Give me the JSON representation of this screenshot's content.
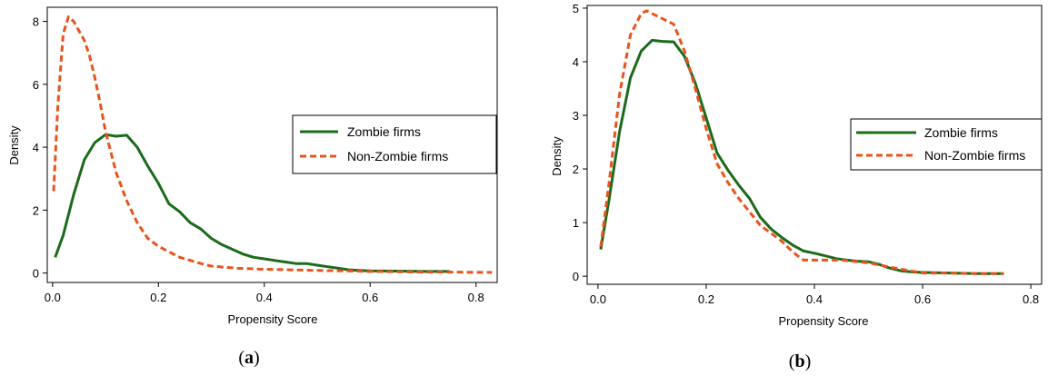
{
  "series_style": {
    "zombie_color": "#1b6b1b",
    "nonzombie_color": "#e8541c"
  },
  "chart_data": [
    {
      "type": "line",
      "caption": {
        "open": "(",
        "letter": "a",
        "close": ")"
      },
      "xlabel": "Propensity Score",
      "ylabel": "Density",
      "xlim": [
        -0.01,
        0.84
      ],
      "ylim": [
        -0.3,
        8.45
      ],
      "xticks": [
        0,
        0.2,
        0.4,
        0.6,
        0.8
      ],
      "xtick_labels": [
        "0.0",
        "0.2",
        "0.4",
        "0.6",
        "0.8"
      ],
      "yticks": [
        0,
        2,
        4,
        6,
        8
      ],
      "ytick_labels": [
        "0",
        "2",
        "4",
        "6",
        "8"
      ],
      "grid": false,
      "legend_position": "right",
      "series": [
        {
          "name": "Zombie firms",
          "line_style": "solid",
          "x": [
            0.005,
            0.02,
            0.04,
            0.06,
            0.08,
            0.1,
            0.12,
            0.14,
            0.16,
            0.18,
            0.2,
            0.22,
            0.24,
            0.26,
            0.28,
            0.3,
            0.32,
            0.34,
            0.36,
            0.38,
            0.4,
            0.42,
            0.44,
            0.46,
            0.48,
            0.5,
            0.52,
            0.54,
            0.56,
            0.58,
            0.6,
            0.65,
            0.7,
            0.75
          ],
          "y": [
            0.5,
            1.2,
            2.5,
            3.6,
            4.15,
            4.4,
            4.35,
            4.38,
            4.0,
            3.4,
            2.85,
            2.2,
            1.95,
            1.6,
            1.4,
            1.1,
            0.9,
            0.75,
            0.6,
            0.5,
            0.45,
            0.4,
            0.35,
            0.3,
            0.3,
            0.25,
            0.2,
            0.15,
            0.1,
            0.08,
            0.07,
            0.06,
            0.05,
            0.05
          ]
        },
        {
          "name": "Non-Zombie firms",
          "line_style": "dashed",
          "x": [
            0.002,
            0.01,
            0.02,
            0.03,
            0.04,
            0.05,
            0.06,
            0.07,
            0.08,
            0.09,
            0.1,
            0.12,
            0.14,
            0.16,
            0.18,
            0.2,
            0.24,
            0.28,
            0.3,
            0.35,
            0.4,
            0.45,
            0.5,
            0.55,
            0.6,
            0.65,
            0.7,
            0.75,
            0.8,
            0.83
          ],
          "y": [
            2.6,
            5.3,
            7.6,
            8.15,
            8.0,
            7.7,
            7.4,
            6.9,
            6.2,
            5.4,
            4.5,
            3.2,
            2.3,
            1.6,
            1.1,
            0.85,
            0.5,
            0.3,
            0.22,
            0.15,
            0.12,
            0.1,
            0.08,
            0.07,
            0.05,
            0.04,
            0.03,
            0.03,
            0.02,
            0.02
          ]
        }
      ]
    },
    {
      "type": "line",
      "caption": {
        "open": "(",
        "letter": "b",
        "close": ")"
      },
      "xlabel": "Propensity Score",
      "ylabel": "Density",
      "xlim": [
        -0.02,
        0.82
      ],
      "ylim": [
        -0.15,
        5.05
      ],
      "xticks": [
        0,
        0.2,
        0.4,
        0.6,
        0.8
      ],
      "xtick_labels": [
        "0.0",
        "0.2",
        "0.4",
        "0.6",
        "0.8"
      ],
      "yticks": [
        0,
        1,
        2,
        3,
        4,
        5
      ],
      "ytick_labels": [
        "0",
        "1",
        "2",
        "3",
        "4",
        "5"
      ],
      "grid": false,
      "legend_position": "right",
      "series": [
        {
          "name": "Zombie firms",
          "line_style": "solid",
          "x": [
            0.005,
            0.02,
            0.04,
            0.06,
            0.08,
            0.1,
            0.12,
            0.14,
            0.16,
            0.18,
            0.2,
            0.22,
            0.24,
            0.26,
            0.28,
            0.3,
            0.32,
            0.34,
            0.36,
            0.38,
            0.4,
            0.42,
            0.44,
            0.46,
            0.48,
            0.5,
            0.52,
            0.54,
            0.56,
            0.58,
            0.6,
            0.65,
            0.7,
            0.75
          ],
          "y": [
            0.5,
            1.4,
            2.7,
            3.7,
            4.2,
            4.4,
            4.38,
            4.37,
            4.1,
            3.6,
            2.95,
            2.3,
            1.98,
            1.7,
            1.45,
            1.1,
            0.88,
            0.72,
            0.58,
            0.47,
            0.43,
            0.38,
            0.33,
            0.3,
            0.28,
            0.27,
            0.22,
            0.15,
            0.1,
            0.08,
            0.07,
            0.06,
            0.05,
            0.05
          ]
        },
        {
          "name": "Non-Zombie firms",
          "line_style": "dashed",
          "x": [
            0.005,
            0.02,
            0.04,
            0.06,
            0.08,
            0.09,
            0.1,
            0.12,
            0.14,
            0.16,
            0.18,
            0.2,
            0.22,
            0.24,
            0.26,
            0.28,
            0.3,
            0.32,
            0.34,
            0.36,
            0.38,
            0.4,
            0.45,
            0.5,
            0.55,
            0.6,
            0.65,
            0.7,
            0.75
          ],
          "y": [
            0.55,
            1.7,
            3.4,
            4.5,
            4.9,
            4.95,
            4.9,
            4.8,
            4.7,
            4.2,
            3.5,
            2.75,
            2.1,
            1.75,
            1.45,
            1.2,
            0.95,
            0.8,
            0.65,
            0.45,
            0.3,
            0.3,
            0.3,
            0.25,
            0.15,
            0.06,
            0.06,
            0.05,
            0.05
          ]
        }
      ]
    }
  ]
}
